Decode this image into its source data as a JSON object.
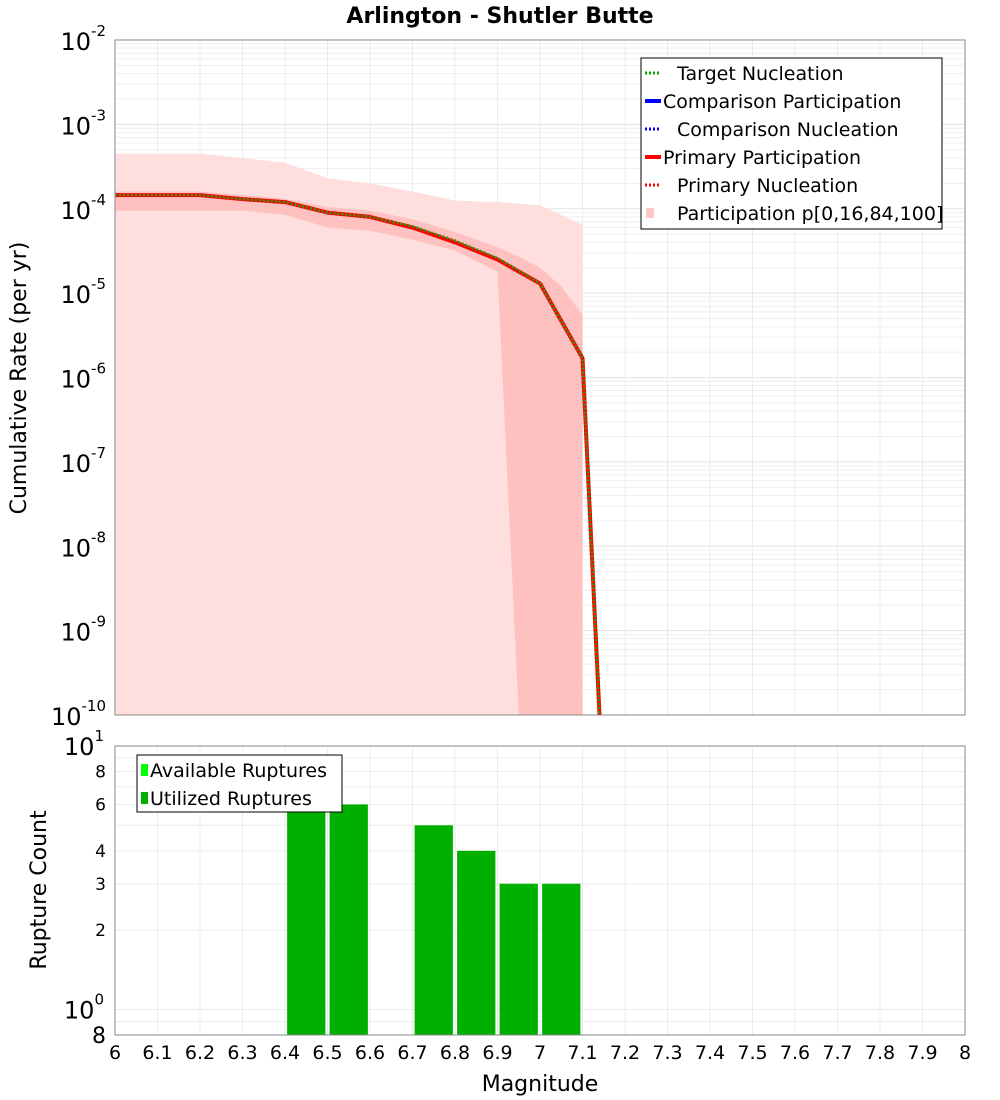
{
  "chart_data": [
    {
      "type": "line",
      "title": "Arlington - Shutler Butte",
      "xlabel": "",
      "ylabel": "Cumulative Rate (per yr)",
      "y_scale": "log",
      "xlim": [
        6,
        8
      ],
      "ylim": [
        1e-10,
        0.01
      ],
      "y_ticks": [
        {
          "base": "10",
          "exp": "-10"
        },
        {
          "base": "10",
          "exp": "-9"
        },
        {
          "base": "10",
          "exp": "-8"
        },
        {
          "base": "10",
          "exp": "-7"
        },
        {
          "base": "10",
          "exp": "-6"
        },
        {
          "base": "10",
          "exp": "-5"
        },
        {
          "base": "10",
          "exp": "-4"
        },
        {
          "base": "10",
          "exp": "-3"
        },
        {
          "base": "10",
          "exp": "-2"
        }
      ],
      "grid": true,
      "legend_position": "top-right",
      "legend": [
        {
          "label": "Target Nucleation",
          "color": "#00aa00",
          "style": "dotted"
        },
        {
          "label": "Comparison Participation",
          "color": "#0000ff",
          "style": "solid"
        },
        {
          "label": "Comparison Nucleation",
          "color": "#0000ff",
          "style": "dotted"
        },
        {
          "label": "Primary Participation",
          "color": "#ff0000",
          "style": "solid"
        },
        {
          "label": "Primary Nucleation",
          "color": "#ff0000",
          "style": "dotted"
        },
        {
          "label": "Participation p[0,16,84,100]",
          "color": "#ffc8c8",
          "style": "box"
        }
      ],
      "bands": [
        {
          "name": "p[0,100]",
          "color": "#ffdede",
          "x": [
            6.0,
            6.2,
            6.3,
            6.4,
            6.5,
            6.6,
            6.7,
            6.8,
            6.9,
            7.0,
            7.1,
            7.1
          ],
          "lower": [
            1e-10,
            1e-10,
            1e-10,
            1e-10,
            1e-10,
            1e-10,
            1e-10,
            1e-10,
            1e-10,
            1e-10,
            1e-10,
            1e-10
          ],
          "upper": [
            0.00045,
            0.00045,
            0.0004,
            0.00035,
            0.00023,
            0.0002,
            0.00016,
            0.000125,
            0.00012,
            0.00011,
            6.5e-05,
            1e-10
          ]
        },
        {
          "name": "p[16,84]",
          "color": "#ffc0c0",
          "x": [
            6.0,
            6.2,
            6.3,
            6.4,
            6.5,
            6.6,
            6.7,
            6.8,
            6.9,
            6.95,
            7.0,
            7.05,
            7.1,
            7.1
          ],
          "lower": [
            9.5e-05,
            9.5e-05,
            9.5e-05,
            8.5e-05,
            6e-05,
            5.5e-05,
            4.3e-05,
            3.2e-05,
            1.8e-05,
            1e-10,
            1e-10,
            1e-10,
            1e-10,
            1e-10
          ],
          "upper": [
            0.00016,
            0.00016,
            0.000145,
            0.000132,
            0.000105,
            9.5e-05,
            7.5e-05,
            5.3e-05,
            3.5e-05,
            2.7e-05,
            2e-05,
            1.2e-05,
            5.5e-06,
            1e-10
          ]
        }
      ],
      "series": [
        {
          "name": "Target Nucleation",
          "color": "#00aa00",
          "style": "dotted",
          "x": [
            6.0,
            6.2,
            6.3,
            6.4,
            6.5,
            6.6,
            6.7,
            6.8,
            6.9,
            7.0,
            7.1,
            7.14
          ],
          "y": [
            0.000145,
            0.000145,
            0.00013,
            0.00012,
            9e-05,
            8e-05,
            6.2e-05,
            4.2e-05,
            2.6e-05,
            1.3e-05,
            1.7e-06,
            1e-10
          ]
        },
        {
          "name": "Primary Participation",
          "color": "#ff0000",
          "style": "solid",
          "x": [
            6.0,
            6.2,
            6.3,
            6.4,
            6.5,
            6.6,
            6.7,
            6.8,
            6.9,
            7.0,
            7.1,
            7.14
          ],
          "y": [
            0.000145,
            0.000145,
            0.00013,
            0.00012,
            9e-05,
            8e-05,
            6e-05,
            4e-05,
            2.5e-05,
            1.3e-05,
            1.7e-06,
            1e-10
          ]
        }
      ]
    },
    {
      "type": "bar",
      "title": "",
      "xlabel": "Magnitude",
      "ylabel": "Rupture Count",
      "y_scale": "log",
      "xlim": [
        6,
        8
      ],
      "ylim": [
        0.8,
        10
      ],
      "x_ticks": [
        "6",
        "6.1",
        "6.2",
        "6.3",
        "6.4",
        "6.5",
        "6.6",
        "6.7",
        "6.8",
        "6.9",
        "7",
        "7.1",
        "7.2",
        "7.3",
        "7.4",
        "7.5",
        "7.6",
        "7.7",
        "7.8",
        "7.9",
        "8"
      ],
      "y_ticks_plain": [
        {
          "value": 2,
          "label": "2"
        },
        {
          "value": 3,
          "label": "3"
        },
        {
          "value": 4,
          "label": "4"
        },
        {
          "value": 6,
          "label": "6"
        },
        {
          "value": 8,
          "label": "8"
        }
      ],
      "y_ticks_power": [
        {
          "value": 1,
          "base": "10",
          "exp": "0"
        },
        {
          "value": 10,
          "base": "10",
          "exp": "1"
        }
      ],
      "y_bottom_label": "8",
      "grid": true,
      "legend_position": "top-left",
      "legend": [
        {
          "label": "Available Ruptures",
          "color": "#00ff00"
        },
        {
          "label": "Utilized Ruptures",
          "color": "#00b000"
        }
      ],
      "bars": [
        {
          "x": 6.45,
          "available": 7,
          "utilized": 7
        },
        {
          "x": 6.55,
          "available": 6,
          "utilized": 6
        },
        {
          "x": 6.75,
          "available": 5,
          "utilized": 5
        },
        {
          "x": 6.85,
          "available": 4,
          "utilized": 4
        },
        {
          "x": 6.95,
          "available": 3,
          "utilized": 3
        },
        {
          "x": 7.05,
          "available": 3,
          "utilized": 3
        }
      ]
    }
  ]
}
